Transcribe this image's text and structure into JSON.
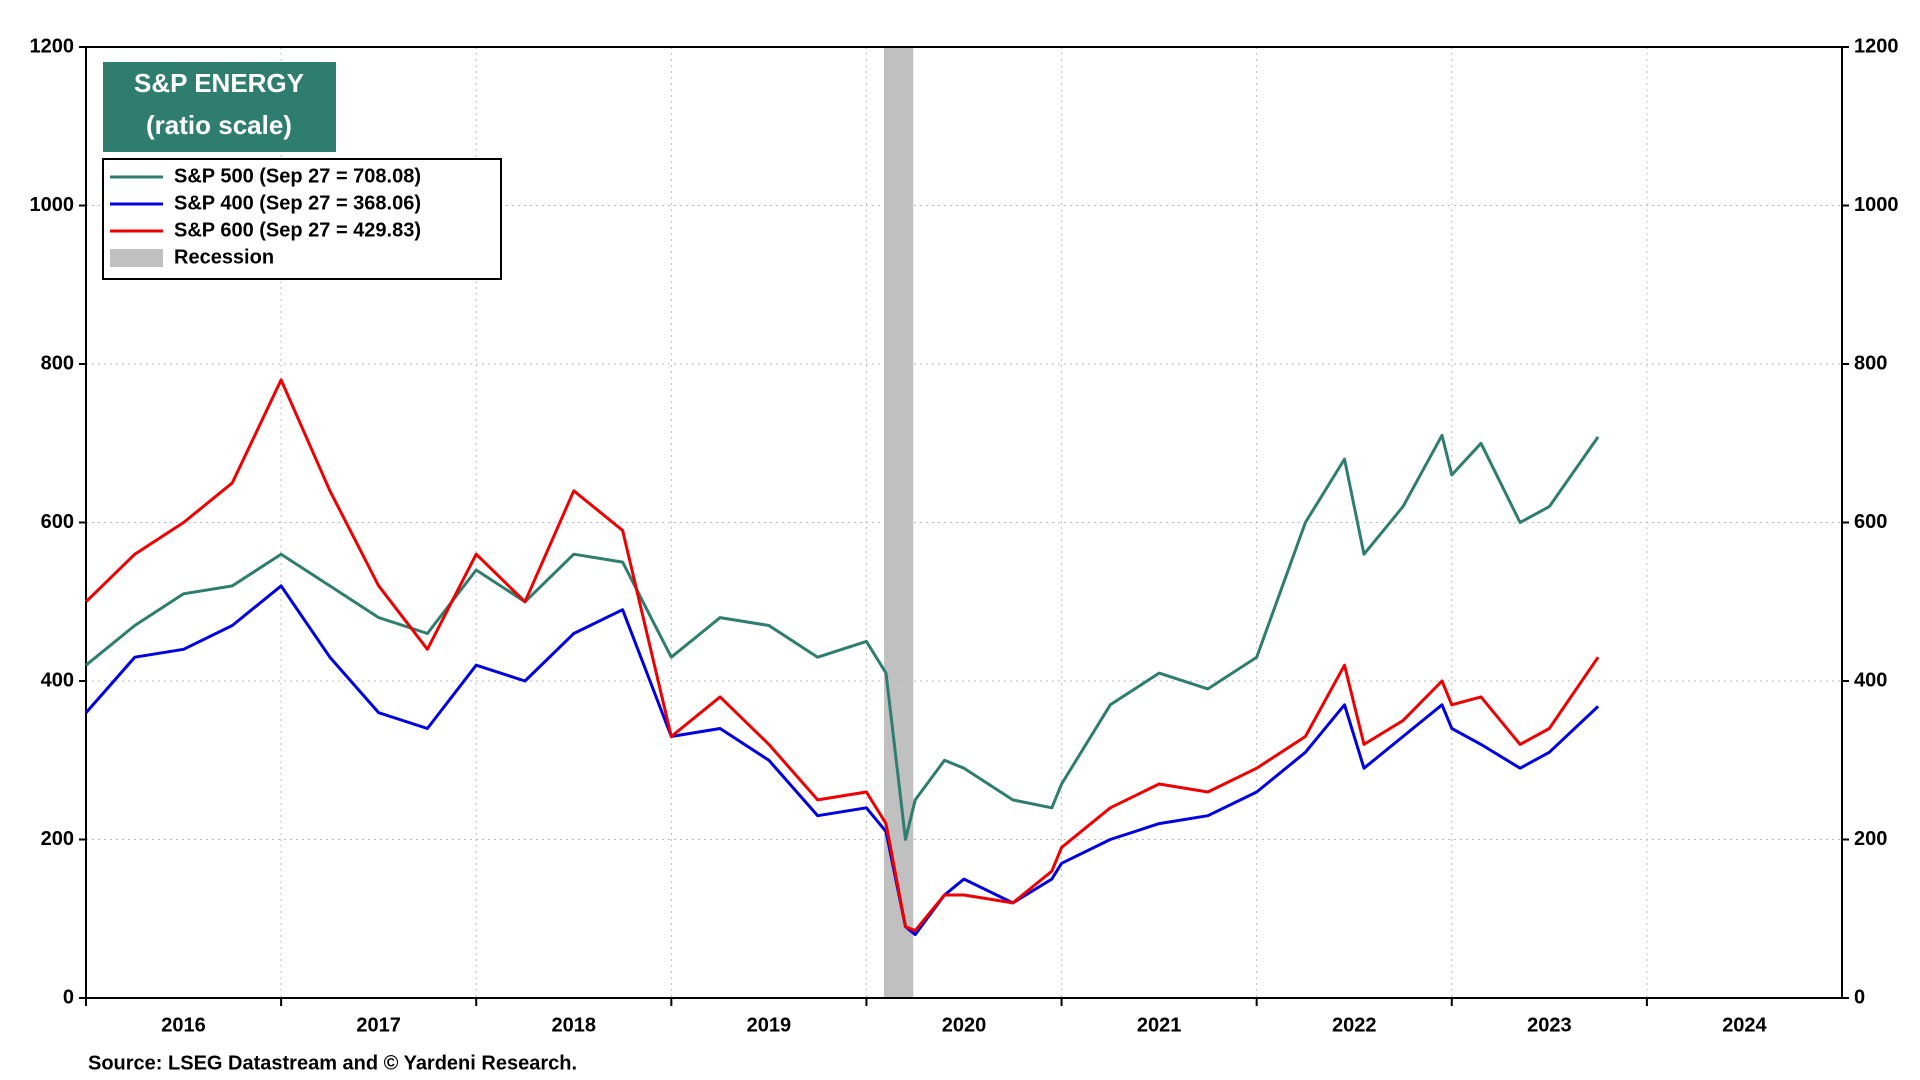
{
  "chart_data": {
    "type": "line",
    "title": "S&P ENERGY",
    "subtitle": "(ratio scale)",
    "source": "Source: LSEG Datastream and © Yardeni Research.",
    "xlim": [
      2016,
      2025
    ],
    "xticks": [
      2016,
      2017,
      2018,
      2019,
      2020,
      2021,
      2022,
      2023,
      2024
    ],
    "ylim": [
      0,
      1200
    ],
    "yticks": [
      0,
      200,
      400,
      600,
      800,
      1000,
      1200
    ],
    "grid": true,
    "legend": "upper left",
    "x": [
      2016.0,
      2016.25,
      2016.5,
      2016.75,
      2017.0,
      2017.25,
      2017.5,
      2017.75,
      2018.0,
      2018.25,
      2018.5,
      2018.75,
      2019.0,
      2019.25,
      2019.5,
      2019.75,
      2020.0,
      2020.1,
      2020.2,
      2020.25,
      2020.4,
      2020.5,
      2020.75,
      2020.95,
      2021.0,
      2021.25,
      2021.5,
      2021.75,
      2022.0,
      2022.25,
      2022.45,
      2022.55,
      2022.75,
      2022.95,
      2023.0,
      2023.15,
      2023.35,
      2023.5,
      2023.75
    ],
    "series": [
      {
        "name": "S&P 500 (Sep 27 = 708.08)",
        "color": "#2e7d6f",
        "values": [
          420,
          470,
          510,
          520,
          560,
          520,
          480,
          460,
          540,
          500,
          560,
          550,
          430,
          480,
          470,
          430,
          450,
          410,
          200,
          250,
          300,
          290,
          250,
          240,
          270,
          370,
          410,
          390,
          430,
          600,
          680,
          560,
          620,
          710,
          660,
          700,
          600,
          620,
          708
        ]
      },
      {
        "name": "S&P 400 (Sep 27 = 368.06)",
        "color": "#0000e0",
        "values": [
          360,
          430,
          440,
          470,
          520,
          430,
          360,
          340,
          420,
          400,
          460,
          490,
          330,
          340,
          300,
          230,
          240,
          210,
          90,
          80,
          130,
          150,
          120,
          150,
          170,
          200,
          220,
          230,
          260,
          310,
          370,
          290,
          330,
          370,
          340,
          320,
          290,
          310,
          368
        ]
      },
      {
        "name": "S&P 600 (Sep 27 = 429.83)",
        "color": "#ee0000",
        "values": [
          500,
          560,
          600,
          650,
          780,
          640,
          520,
          440,
          560,
          500,
          640,
          590,
          330,
          380,
          320,
          250,
          260,
          220,
          90,
          85,
          130,
          130,
          120,
          160,
          190,
          240,
          270,
          260,
          290,
          330,
          420,
          320,
          350,
          400,
          370,
          380,
          320,
          340,
          430
        ]
      }
    ],
    "recession": {
      "name": "Recession",
      "color": "#c0c0c0",
      "start": 2020.09,
      "end": 2020.24
    }
  }
}
